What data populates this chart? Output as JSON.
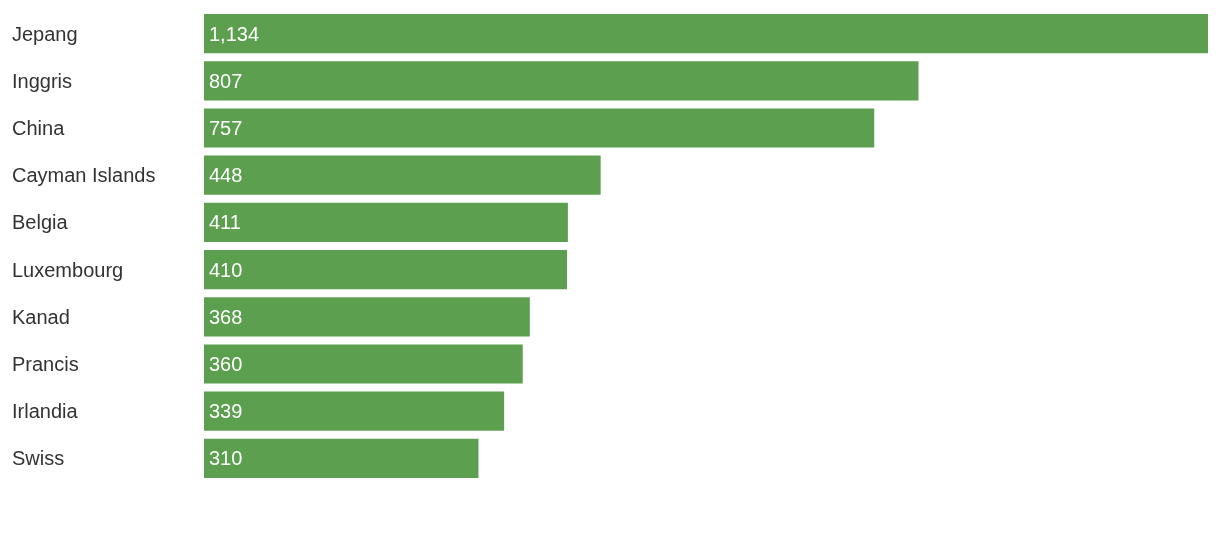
{
  "chart_data": {
    "type": "bar",
    "orientation": "horizontal",
    "categories": [
      "Jepang",
      "Inggris",
      "China",
      "Cayman Islands",
      "Belgia",
      "Luxembourg",
      "Kanad",
      "Prancis",
      "Irlandia",
      "Swiss"
    ],
    "values": [
      1134,
      807,
      757,
      448,
      411,
      410,
      368,
      360,
      339,
      310
    ],
    "value_labels": [
      "1,134",
      "807",
      "757",
      "448",
      "411",
      "410",
      "368",
      "360",
      "339",
      "310"
    ],
    "color": "#5b9f4f"
  }
}
